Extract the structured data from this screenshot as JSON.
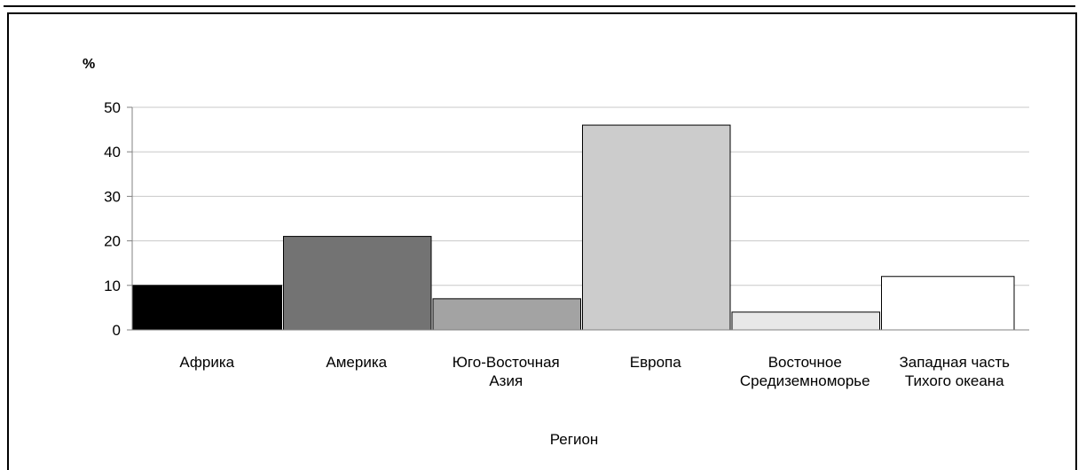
{
  "chart_data": {
    "type": "bar",
    "unit_label": "%",
    "xlabel": "Регион",
    "ylabel": "",
    "ylim": [
      0,
      50
    ],
    "yticks": [
      0,
      10,
      20,
      30,
      40,
      50
    ],
    "grid": true,
    "categories": [
      [
        "Африка"
      ],
      [
        "Америка"
      ],
      [
        "Юго-Восточная",
        "Азия"
      ],
      [
        "Европа"
      ],
      [
        "Восточное",
        "Средиземноморье"
      ],
      [
        "Западная часть",
        "Тихого океана"
      ]
    ],
    "values": [
      10,
      21,
      7,
      46,
      4,
      12
    ],
    "colors": [
      "#000000",
      "#737373",
      "#a3a3a3",
      "#cccccc",
      "#e8e8e8",
      "#ffffff"
    ],
    "grid_color": "#c8c8c8"
  }
}
